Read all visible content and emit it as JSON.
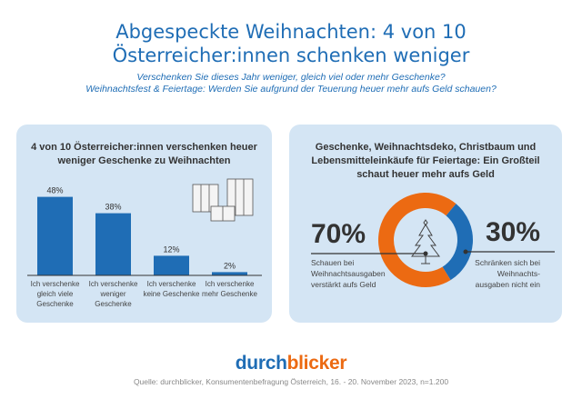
{
  "title": {
    "line1": "Abgespeckte Weihnachten: 4 von 10",
    "line2": "Österreicher:innen schenken weniger"
  },
  "subtitle": {
    "line1": "Verschenken Sie dieses Jahr weniger, gleich viel oder mehr Geschenke?",
    "line2": "Weihnachtsfest & Feiertage: Werden Sie aufgrund der Teuerung heuer mehr aufs Geld schauen?"
  },
  "chart_data": [
    {
      "type": "bar",
      "title": "4 von 10 Österreicher:innen verschenken heuer weniger Geschenke zu Weihnachten",
      "title_lines": [
        "4 von 10 Österreicher:innen verschenken heuer",
        "weniger Geschenke zu Weihnachten"
      ],
      "categories": [
        [
          "Ich verschenke",
          "gleich viele",
          "Geschenke"
        ],
        [
          "Ich verschenke",
          "weniger",
          "Geschenke"
        ],
        [
          "Ich verschenke",
          "keine Geschenke"
        ],
        [
          "Ich verschenke",
          "mehr Geschenke"
        ]
      ],
      "values": [
        48,
        38,
        12,
        2
      ],
      "labels": [
        "48%",
        "38%",
        "12%",
        "2%"
      ],
      "unit": "%",
      "color": "#1f6db5",
      "icon": "gift-boxes-icon"
    },
    {
      "type": "pie",
      "variant": "donut",
      "title": "Geschenke, Weihnachtsdeko, Christbaum und Lebensmitteleinkäufe für Feiertage: Ein Großteil schaut heuer mehr aufs Geld",
      "title_lines": [
        "Geschenke, Weihnachtsdeko, Christbaum und",
        "Lebensmitteleinkäufe für Feiertage: Ein Großteil",
        "schaut heuer mehr aufs Geld"
      ],
      "slices": [
        {
          "value": 70,
          "label": "70%",
          "desc": [
            "Schauen bei",
            "Weihnachtsausgaben",
            "verstärkt aufs Geld"
          ],
          "color": "#ec6a12"
        },
        {
          "value": 30,
          "label": "30%",
          "desc": [
            "Schränken sich bei",
            "Weihnachts-",
            "ausgaben nicht ein"
          ],
          "color": "#1f6db5"
        }
      ],
      "icon": "christmas-tree-icon"
    }
  ],
  "brand": {
    "part1": "durch",
    "part2": "blicker"
  },
  "source": "Quelle: durchblicker, Konsumentenbefragung Österreich,  16. - 20. November 2023, n=1.200"
}
